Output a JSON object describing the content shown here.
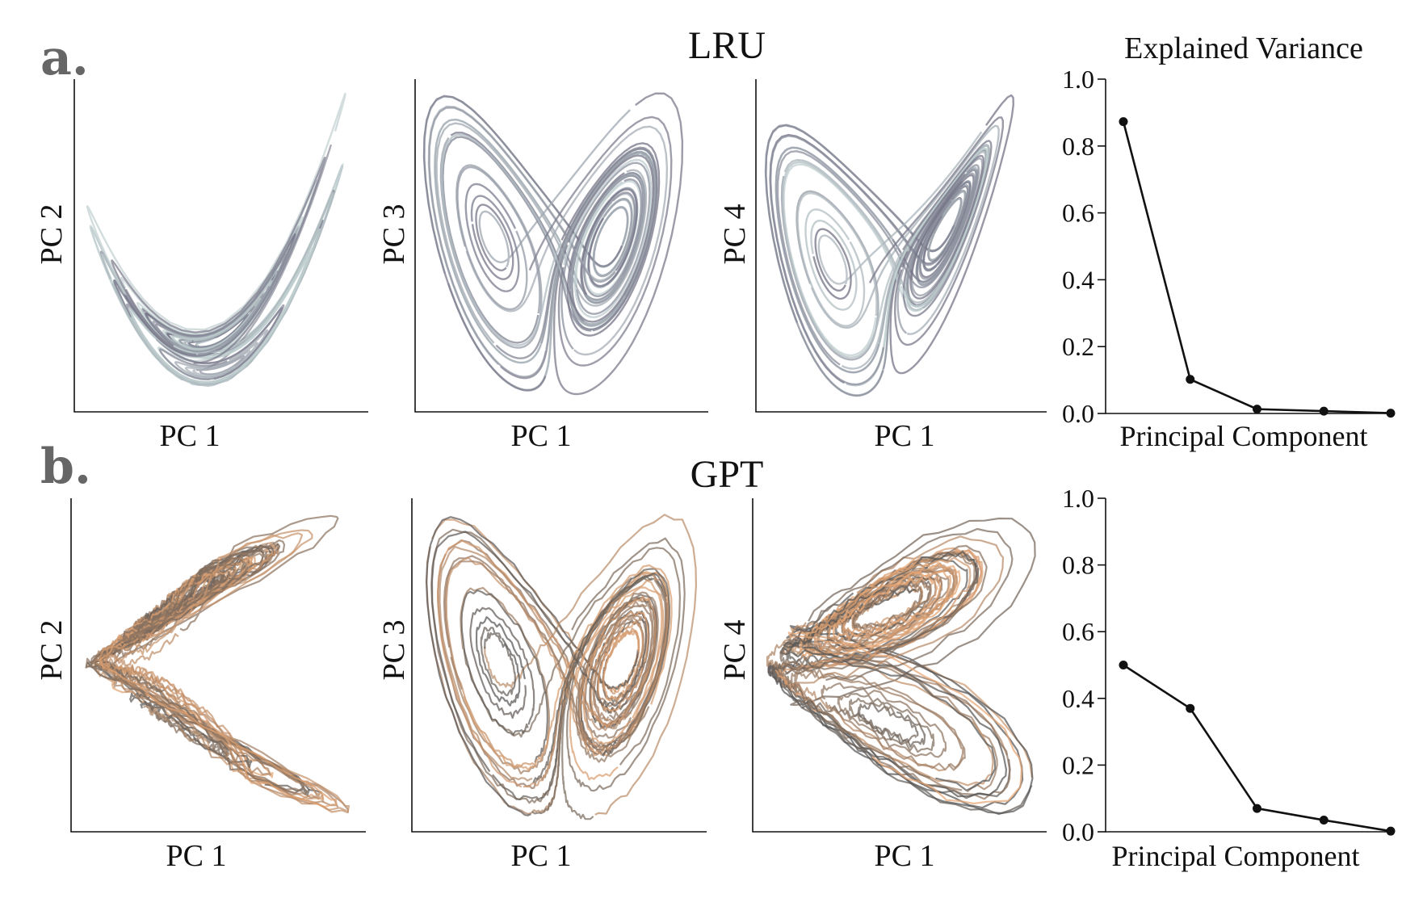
{
  "panels": {
    "a": {
      "letter": "a.",
      "title": "LRU"
    },
    "b": {
      "letter": "b.",
      "title": "GPT"
    }
  },
  "colors": {
    "lru_dark": "#6e6c80",
    "lru_mid": "#8e97a3",
    "lru_light": "#c6d6d6",
    "gpt_dark": "#555555",
    "gpt_orange": "#e8a673",
    "gpt_light_orange": "#f4c4a0",
    "variance_line": "#111111"
  },
  "chart_data": [
    {
      "type": "line",
      "row": "a",
      "description_visible": false,
      "xlabel": "PC 1",
      "ylabel": "PC 2",
      "series_colors": [
        "#6e6c80",
        "#c6d6d6"
      ]
    },
    {
      "type": "line",
      "row": "a",
      "xlabel": "PC 1",
      "ylabel": "PC 3",
      "series_colors": [
        "#6e6c80",
        "#c6d6d6"
      ]
    },
    {
      "type": "line",
      "row": "a",
      "xlabel": "PC 1",
      "ylabel": "PC 4",
      "series_colors": [
        "#6e6c80",
        "#c6d6d6"
      ]
    },
    {
      "type": "line",
      "row": "a",
      "title": "Explained Variance",
      "xlabel": "Principal Component",
      "ylabel": "",
      "x": [
        1,
        2,
        3,
        4,
        5
      ],
      "values": [
        0.873,
        0.102,
        0.013,
        0.007,
        0.001
      ],
      "ylim": [
        0.0,
        1.0
      ],
      "yticks": [
        "0.0",
        "0.2",
        "0.4",
        "0.6",
        "0.8",
        "1.0"
      ]
    },
    {
      "type": "line",
      "row": "b",
      "xlabel": "PC 1",
      "ylabel": "PC 2",
      "series_colors": [
        "#555555",
        "#e8a673"
      ]
    },
    {
      "type": "line",
      "row": "b",
      "xlabel": "PC 1",
      "ylabel": "PC 3",
      "series_colors": [
        "#555555",
        "#e8a673"
      ]
    },
    {
      "type": "line",
      "row": "b",
      "xlabel": "PC 1",
      "ylabel": "PC 4",
      "series_colors": [
        "#555555",
        "#e8a673"
      ]
    },
    {
      "type": "line",
      "row": "b",
      "title": "",
      "xlabel": "Principal Component",
      "ylabel": "",
      "x": [
        1,
        2,
        3,
        4,
        5
      ],
      "values": [
        0.5,
        0.37,
        0.07,
        0.035,
        0.002
      ],
      "ylim": [
        0.0,
        1.0
      ],
      "yticks": [
        "0.0",
        "0.2",
        "0.4",
        "0.6",
        "0.8",
        "1.0"
      ]
    }
  ]
}
